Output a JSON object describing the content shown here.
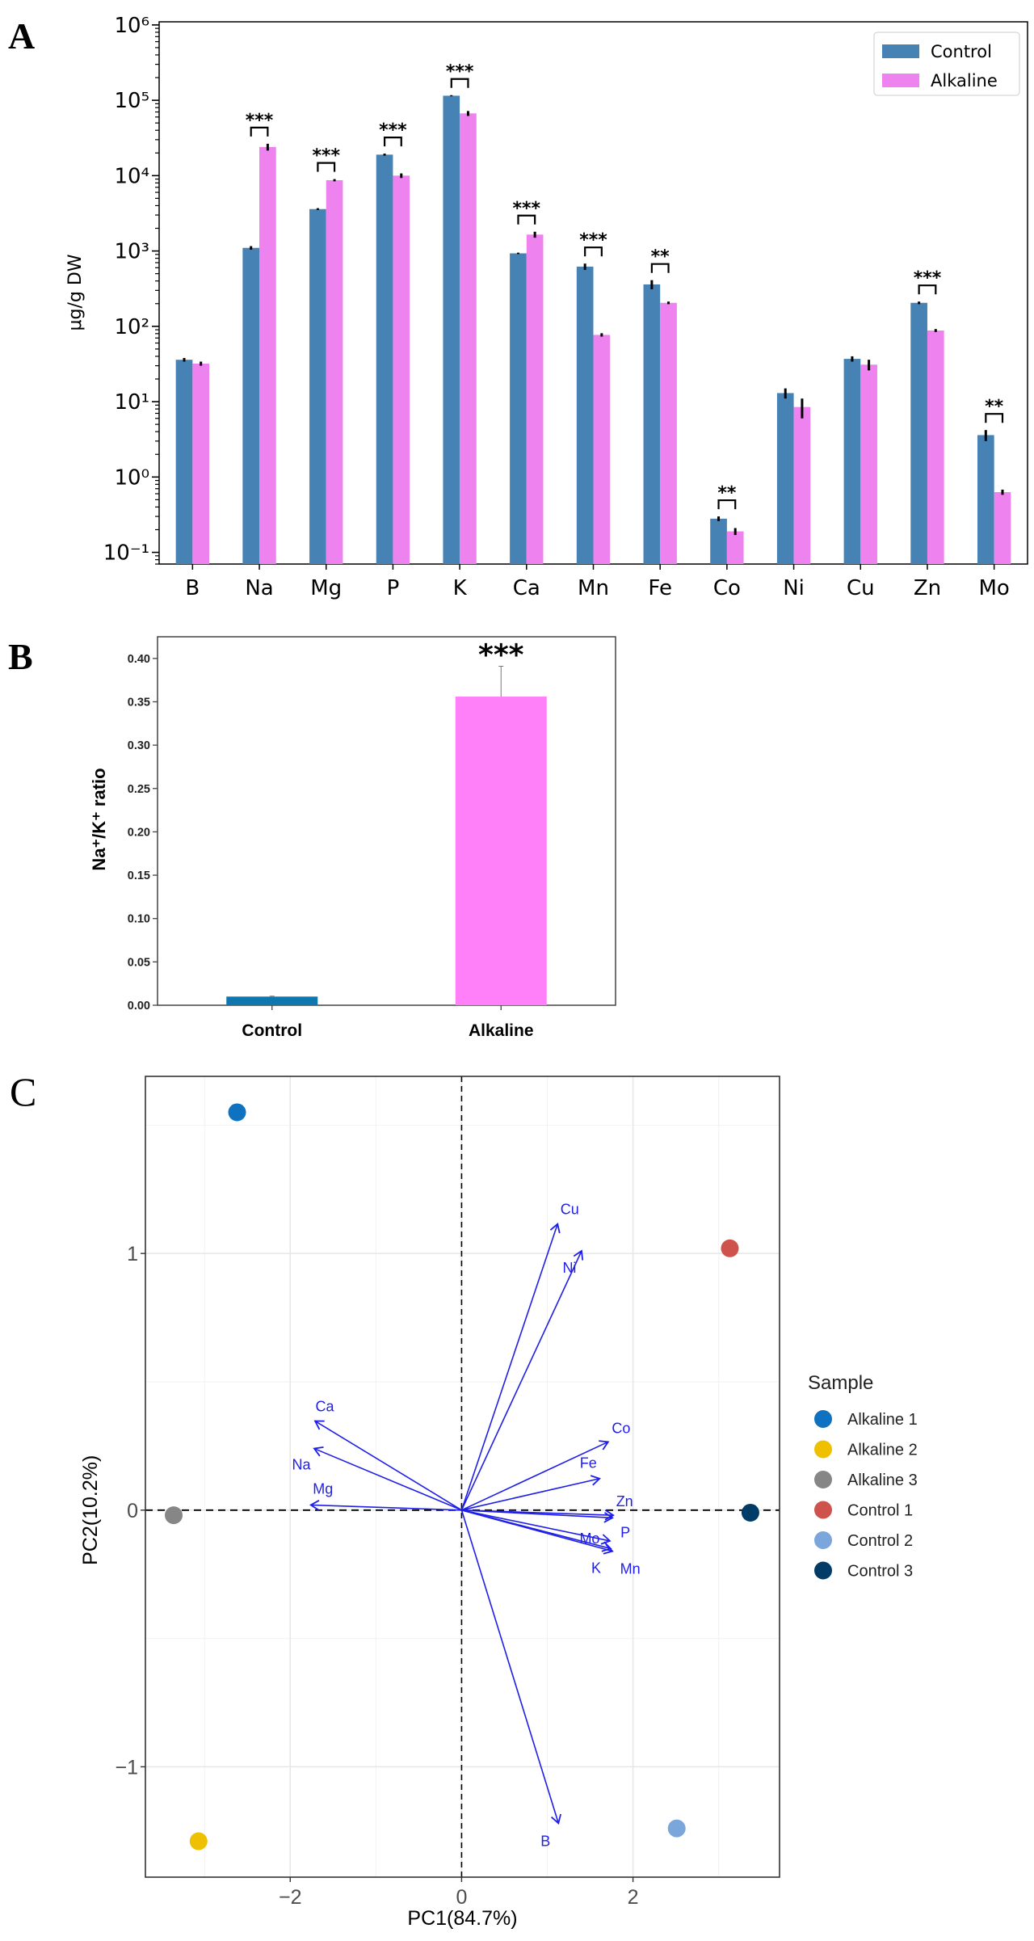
{
  "panels": {
    "a": "A",
    "b": "B",
    "c": "C"
  },
  "chart_data": [
    {
      "type": "bar",
      "ylabel": "μg/g DW",
      "yscale": "log",
      "ylim": [
        0.07,
        1100000
      ],
      "ytick_labels": [
        "10⁻¹",
        "10⁰",
        "10¹",
        "10²",
        "10³",
        "10⁴",
        "10⁵",
        "10⁶"
      ],
      "ytick_exponents": [
        -1,
        0,
        1,
        2,
        3,
        4,
        5,
        6
      ],
      "categories": [
        "B",
        "Na",
        "Mg",
        "P",
        "K",
        "Ca",
        "Mn",
        "Fe",
        "Co",
        "Ni",
        "Cu",
        "Zn",
        "Mo"
      ],
      "series": [
        {
          "name": "Control",
          "color": "#4682b4",
          "values": [
            36,
            1100,
            3600,
            19000,
            115000,
            930,
            620,
            360,
            0.28,
            13,
            37,
            205,
            3.6
          ],
          "errors": [
            2,
            60,
            100,
            600,
            2000,
            20,
            60,
            50,
            0.02,
            2,
            3,
            8,
            0.6
          ]
        },
        {
          "name": "Alkaline",
          "color": "#ee82ee",
          "values": [
            32,
            24000,
            8700,
            10000,
            67000,
            1650,
            77,
            205,
            0.19,
            8.5,
            31,
            88,
            0.63
          ],
          "errors": [
            2,
            2500,
            300,
            700,
            5000,
            150,
            4,
            8,
            0.02,
            2.5,
            5,
            4,
            0.05
          ]
        }
      ],
      "significance": [
        "",
        "***",
        "***",
        "***",
        "***",
        "***",
        "***",
        "**",
        "**",
        "",
        "",
        "***",
        "**"
      ],
      "legend": "top-right",
      "grid": false
    },
    {
      "type": "bar",
      "ylabel": "Na⁺/K⁺ ratio",
      "categories": [
        "Control",
        "Alkaline"
      ],
      "values": [
        0.01,
        0.356
      ],
      "errors": [
        0.0005,
        0.035
      ],
      "colors": [
        "#0f77b0",
        "#ff80f8"
      ],
      "ylim": [
        0,
        0.425
      ],
      "yticks": [
        0,
        0.05,
        0.1,
        0.15,
        0.2,
        0.25,
        0.3,
        0.35,
        0.4
      ],
      "ytick_labels": [
        "0.00",
        "0.05",
        "0.10",
        "0.15",
        "0.20",
        "0.25",
        "0.30",
        "0.35",
        "0.40"
      ],
      "significance": [
        "",
        "***"
      ],
      "grid": false
    },
    {
      "type": "scatter",
      "xlabel": "PC1(84.7%)",
      "ylabel": "PC2(10.2%)",
      "xlim": [
        -3.69,
        3.71
      ],
      "ylim": [
        -1.43,
        1.69
      ],
      "xticks": [
        -2,
        0,
        2
      ],
      "xtick_labels": [
        "−2",
        "0",
        "2"
      ],
      "yticks": [
        -1,
        0,
        1
      ],
      "ytick_labels": [
        "−1",
        "0",
        "1"
      ],
      "grid": true,
      "legend_title": "Sample",
      "legend": "right",
      "points": [
        {
          "name": "Alkaline 1",
          "x": -2.62,
          "y": 1.55,
          "color": "#0f72c0"
        },
        {
          "name": "Alkaline 2",
          "x": -3.07,
          "y": -1.29,
          "color": "#efc000"
        },
        {
          "name": "Alkaline 3",
          "x": -3.36,
          "y": -0.02,
          "color": "#868686"
        },
        {
          "name": "Control 1",
          "x": 3.13,
          "y": 1.02,
          "color": "#cd534c"
        },
        {
          "name": "Control 2",
          "x": 2.51,
          "y": -1.24,
          "color": "#7aa6dc"
        },
        {
          "name": "Control 3",
          "x": 3.37,
          "y": -0.01,
          "color": "#003c67"
        }
      ],
      "loadings_color": "#1f1fe8",
      "loadings": [
        {
          "name": "Cu",
          "x": 1.12,
          "y": 1.115
        },
        {
          "name": "Ni",
          "x": 1.4,
          "y": 1.01
        },
        {
          "name": "Co",
          "x": 1.71,
          "y": 0.266
        },
        {
          "name": "Fe",
          "x": 1.61,
          "y": 0.123
        },
        {
          "name": "Zn",
          "x": 1.77,
          "y": -0.02
        },
        {
          "name": "P",
          "x": 1.76,
          "y": -0.03
        },
        {
          "name": "Mo",
          "x": 1.73,
          "y": -0.12
        },
        {
          "name": "K",
          "x": 1.74,
          "y": -0.15
        },
        {
          "name": "Mn",
          "x": 1.76,
          "y": -0.16
        },
        {
          "name": "B",
          "x": 1.13,
          "y": -1.22
        },
        {
          "name": "Ca",
          "x": -1.71,
          "y": 0.347
        },
        {
          "name": "Na",
          "x": -1.72,
          "y": 0.24
        },
        {
          "name": "Mg",
          "x": -1.76,
          "y": 0.02
        }
      ]
    }
  ]
}
